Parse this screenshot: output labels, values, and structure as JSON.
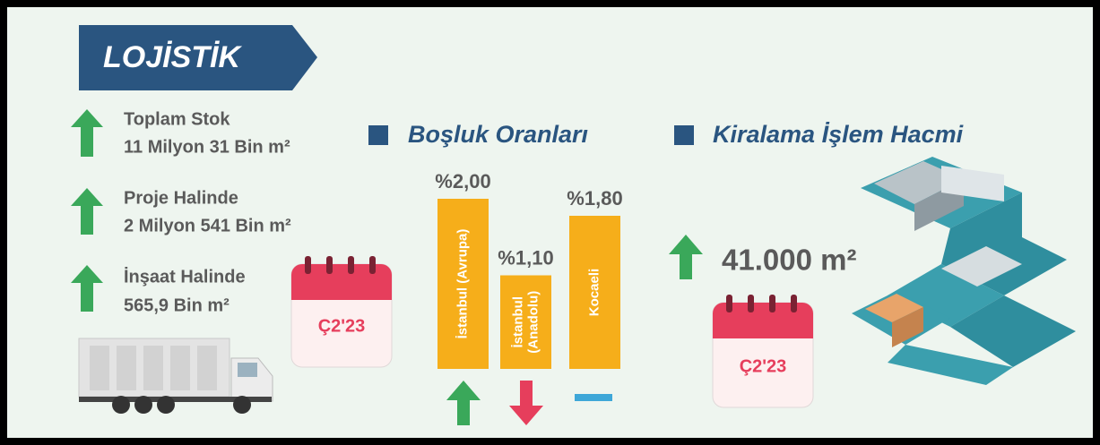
{
  "header": {
    "title": "LOJİSTİK"
  },
  "stats": [
    {
      "label": "Toplam Stok",
      "value": "11 Milyon 31 Bin m²"
    },
    {
      "label": "Proje Halinde",
      "value": "2 Milyon 541 Bin m²"
    },
    {
      "label": "İnşaat Halinde",
      "value": "565,9 Bin m²"
    }
  ],
  "period_left": "Ç2'23",
  "chart_data": {
    "type": "bar",
    "title": "Boşluk Oranları",
    "categories": [
      "İstanbul (Avrupa)",
      "İstanbul (Anadolu)",
      "Kocaeli"
    ],
    "values": [
      2.0,
      1.1,
      1.8
    ],
    "value_labels": [
      "%2,00",
      "%1,10",
      "%1,80"
    ],
    "color": "#f6ae1a"
  },
  "leasing": {
    "title": "Kiralama İşlem Hacmi",
    "value": "41.000 m²",
    "period": "Ç2'23"
  }
}
